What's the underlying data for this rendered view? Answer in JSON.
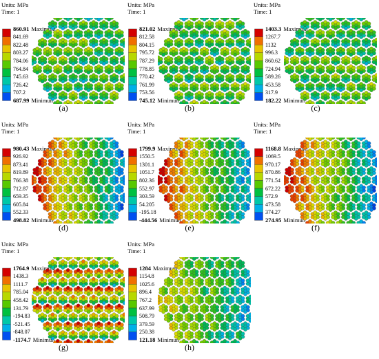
{
  "units_label": "Units: MPa",
  "time_label": "Time: 1",
  "max_word": "Maximum",
  "min_word": "Minimun",
  "panels": [
    {
      "id": "a",
      "caption": "(a)",
      "pattern": "uniform",
      "labels": [
        "860.91",
        "841.69",
        "822.48",
        "803.27",
        "784.06",
        "764.84",
        "745.63",
        "726.42",
        "707.2",
        "687.99"
      ]
    },
    {
      "id": "b",
      "caption": "(b)",
      "pattern": "uniform",
      "labels": [
        "821.02",
        "812.58",
        "804.15",
        "795.72",
        "787.29",
        "778.85",
        "770.42",
        "761.99",
        "753.56",
        "745.12"
      ]
    },
    {
      "id": "c",
      "caption": "(c)",
      "pattern": "uniform",
      "labels": [
        "1403.3",
        "1267.7",
        "1132",
        "996.3",
        "860.62",
        "724.94",
        "589.26",
        "453.58",
        "317.9",
        "182.22"
      ]
    },
    {
      "id": "d",
      "caption": "(d)",
      "pattern": "gradient",
      "labels": [
        "980.43",
        "926.92",
        "873.41",
        "819.89",
        "766.38",
        "712.87",
        "659.35",
        "605.84",
        "552.33",
        "498.82"
      ]
    },
    {
      "id": "e",
      "caption": "(e)",
      "pattern": "gradient",
      "labels": [
        "1799.9",
        "1550.5",
        "1301.1",
        "1051.7",
        "802.36",
        "552.97",
        "303.59",
        "54.205",
        "-195.18",
        "-444.56"
      ]
    },
    {
      "id": "f",
      "caption": "(f)",
      "pattern": "gradient",
      "labels": [
        "1168.8",
        "1069.5",
        "970.17",
        "870.86",
        "771.54",
        "672.22",
        "572.9",
        "473.58",
        "374.27",
        "274.95"
      ]
    },
    {
      "id": "g",
      "caption": "(g)",
      "pattern": "rows",
      "labels": [
        "1764.9",
        "1438.3",
        "1111.7",
        "785.04",
        "458.42",
        "131.79",
        "-194.83",
        "-521.45",
        "-848.07",
        "-1174.7"
      ]
    },
    {
      "id": "h",
      "caption": "(h)",
      "pattern": "mixed",
      "labels": [
        "1284",
        "1154.8",
        "1025.6",
        "896.4",
        "767.2",
        "637.99",
        "508.79",
        "379.59",
        "250.38",
        "121.18"
      ]
    }
  ],
  "colors": {
    "legend_bands": [
      "#d40000",
      "#f07000",
      "#e8c400",
      "#b8d800",
      "#58c800",
      "#00c040",
      "#00c8a8",
      "#00b0e8",
      "#0050f0"
    ]
  }
}
